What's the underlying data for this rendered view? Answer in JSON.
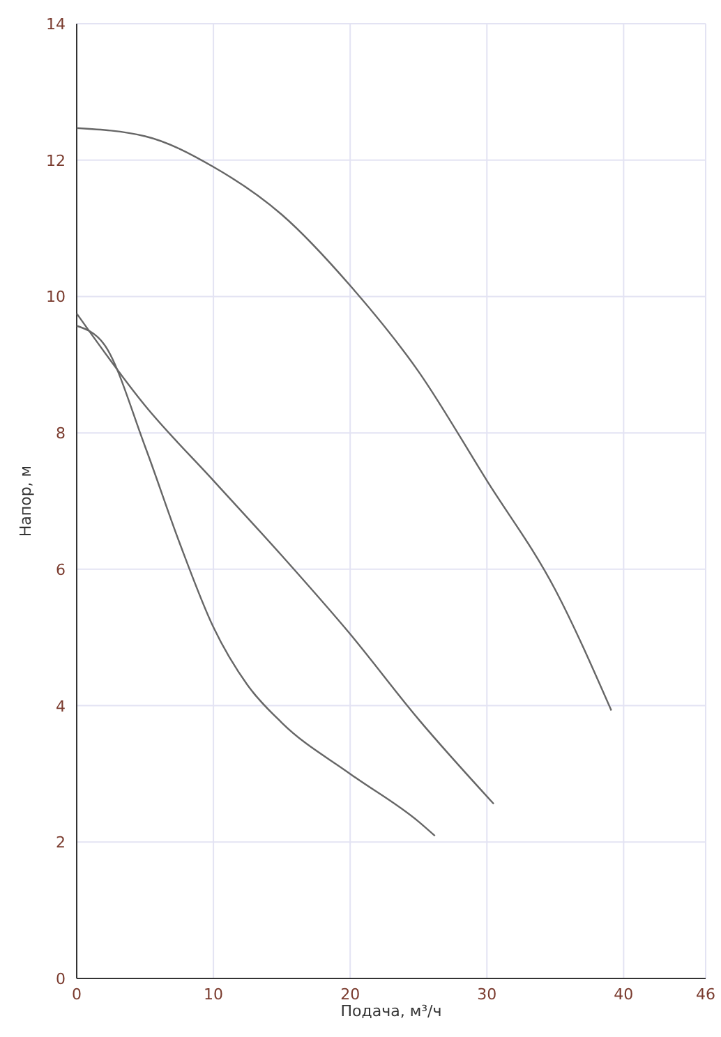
{
  "chart_data": {
    "type": "line",
    "xlabel": "Подача, м³/ч",
    "ylabel": "Напор, м",
    "xlim": [
      0,
      46
    ],
    "ylim": [
      0,
      14
    ],
    "xticks": [
      0,
      10,
      20,
      30,
      40,
      46
    ],
    "yticks": [
      0,
      2,
      4,
      6,
      8,
      10,
      12,
      14
    ],
    "grid": true,
    "marker": "none",
    "line_style": "solid",
    "series": [
      {
        "color": "#666666",
        "x": [
          0,
          5,
          10,
          15,
          20,
          25,
          30,
          35,
          39.1
        ],
        "values": [
          12.47,
          12.35,
          11.9,
          11.2,
          10.16,
          8.9,
          7.3,
          5.7,
          3.93
        ]
      },
      {
        "color": "#666666",
        "x": [
          0,
          5,
          10,
          15,
          20,
          25,
          30.5
        ],
        "values": [
          9.75,
          8.4,
          7.3,
          6.2,
          5.05,
          3.8,
          2.56
        ]
      },
      {
        "color": "#666666",
        "x": [
          0,
          2,
          5,
          7.5,
          10,
          12.5,
          15,
          20,
          25,
          26.2
        ],
        "values": [
          9.57,
          9.3,
          7.8,
          6.4,
          5.15,
          4.3,
          3.75,
          3.0,
          2.3,
          2.09
        ]
      }
    ]
  }
}
